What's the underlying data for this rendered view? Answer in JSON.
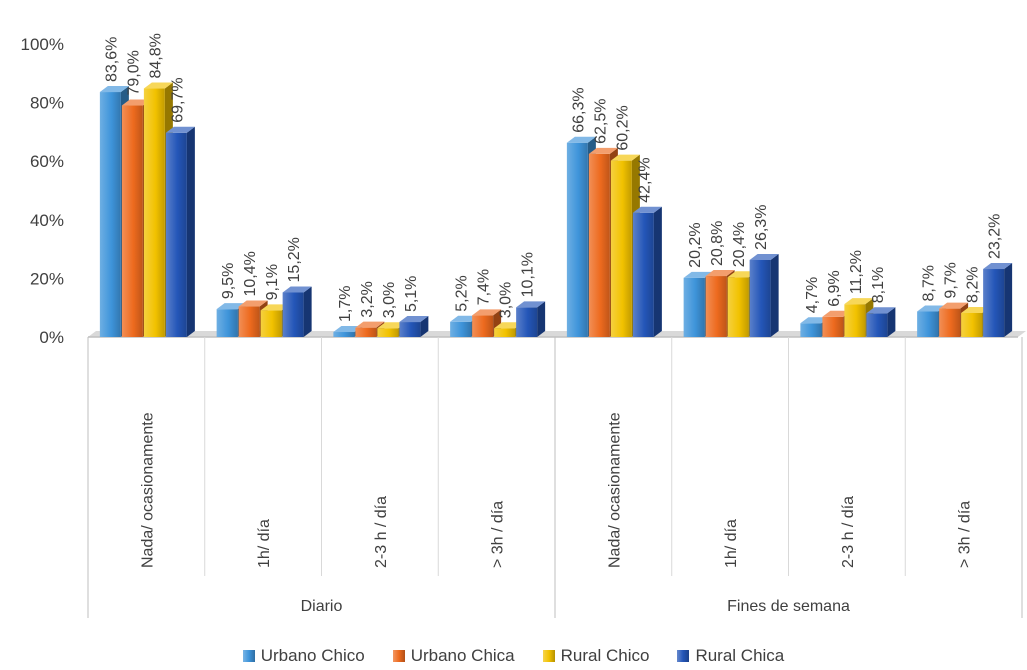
{
  "chart_data": {
    "type": "bar",
    "style": "3d-clustered-column",
    "groups": [
      {
        "label": "Diario",
        "categories": [
          "Nada/ ocasionamente",
          "1h/ día",
          "2-3 h / día",
          "> 3h / día"
        ]
      },
      {
        "label": "Fines de semana",
        "categories": [
          "Nada/ ocasionamente",
          "1h/ día",
          "2-3 h / día",
          "> 3h / día"
        ]
      }
    ],
    "series": [
      {
        "name": "Urbano Chico",
        "color": "#3E94DA",
        "values": [
          83.6,
          9.5,
          1.7,
          5.2,
          66.3,
          20.2,
          4.7,
          8.7
        ],
        "labels": [
          "83,6%",
          "9,5%",
          "1,7%",
          "5,2%",
          "66,3%",
          "20,2%",
          "4,7%",
          "8,7%"
        ]
      },
      {
        "name": "Urbano Chica",
        "color": "#ED6A1E",
        "values": [
          79.0,
          10.4,
          3.2,
          7.4,
          62.5,
          20.8,
          6.9,
          9.7
        ],
        "labels": [
          "79,0%",
          "10,4%",
          "3,2%",
          "7,4%",
          "62,5%",
          "20,8%",
          "6,9%",
          "9,7%"
        ]
      },
      {
        "name": "Rural Chico",
        "color": "#F2C200",
        "values": [
          84.8,
          9.1,
          3.0,
          3.0,
          60.2,
          20.4,
          11.2,
          8.2
        ],
        "labels": [
          "84,8%",
          "9,1%",
          "3,0%",
          "3,0%",
          "60,2%",
          "20,4%",
          "11,2%",
          "8,2%"
        ]
      },
      {
        "name": "Rural Chica",
        "color": "#2456B8",
        "values": [
          69.7,
          15.2,
          5.1,
          10.1,
          42.4,
          26.3,
          8.1,
          23.2
        ],
        "labels": [
          "69,7%",
          "15,2%",
          "5,1%",
          "10,1%",
          "42,4%",
          "26,3%",
          "8,1%",
          "23,2%"
        ]
      }
    ],
    "yticks": [
      "0%",
      "20%",
      "40%",
      "60%",
      "80%",
      "100%"
    ],
    "ylim": [
      0,
      100
    ],
    "legend_position": "bottom",
    "grid": false
  }
}
